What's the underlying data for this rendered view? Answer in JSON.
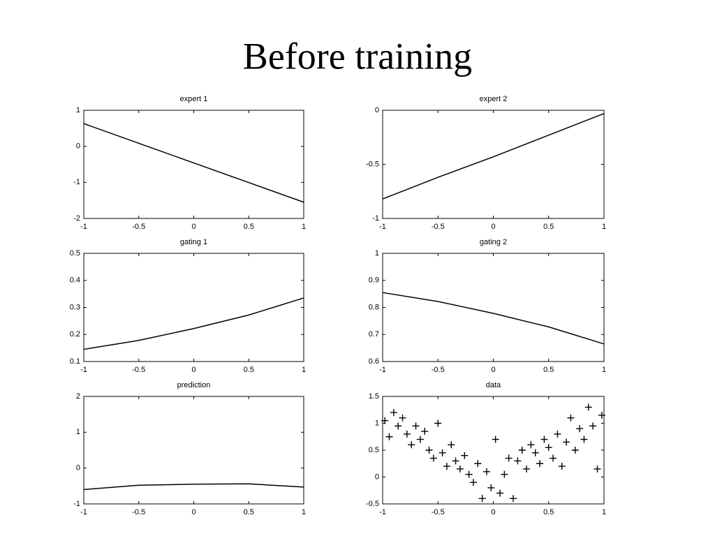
{
  "title": "Before training",
  "chart_data": [
    {
      "type": "line",
      "title": "expert 1",
      "x": [
        -1,
        -0.5,
        0,
        0.5,
        1
      ],
      "values": [
        0.63,
        0.085,
        -0.46,
        -1.005,
        -1.55
      ],
      "color": "#000000",
      "xlim": [
        -1,
        1
      ],
      "xticks": [
        -1,
        -0.5,
        0,
        0.5,
        1
      ],
      "ylim": [
        -2,
        1
      ],
      "yticks": [
        -2,
        -1,
        0,
        1
      ]
    },
    {
      "type": "line",
      "title": "expert 2",
      "x": [
        -1,
        -0.5,
        0,
        0.5,
        1
      ],
      "values": [
        -0.82,
        -0.62,
        -0.43,
        -0.23,
        -0.03
      ],
      "color": "#000000",
      "xlim": [
        -1,
        1
      ],
      "xticks": [
        -1,
        -0.5,
        0,
        0.5,
        1
      ],
      "ylim": [
        -1,
        0
      ],
      "yticks": [
        -1,
        -0.5,
        0
      ]
    },
    {
      "type": "line",
      "title": "gating 1",
      "x": [
        -1,
        -0.5,
        0,
        0.5,
        1
      ],
      "values": [
        0.145,
        0.178,
        0.222,
        0.272,
        0.335
      ],
      "color": "#000000",
      "xlim": [
        -1,
        1
      ],
      "xticks": [
        -1,
        -0.5,
        0,
        0.5,
        1
      ],
      "ylim": [
        0.1,
        0.5
      ],
      "yticks": [
        0.1,
        0.2,
        0.3,
        0.4,
        0.5
      ]
    },
    {
      "type": "line",
      "title": "gating 2",
      "x": [
        -1,
        -0.5,
        0,
        0.5,
        1
      ],
      "values": [
        0.855,
        0.822,
        0.778,
        0.728,
        0.665
      ],
      "color": "#000000",
      "xlim": [
        -1,
        1
      ],
      "xticks": [
        -1,
        -0.5,
        0,
        0.5,
        1
      ],
      "ylim": [
        0.6,
        1
      ],
      "yticks": [
        0.6,
        0.7,
        0.8,
        0.9,
        1
      ]
    },
    {
      "type": "line",
      "title": "prediction",
      "x": [
        -1,
        -0.5,
        0,
        0.5,
        1
      ],
      "values": [
        -0.6,
        -0.48,
        -0.45,
        -0.44,
        -0.53
      ],
      "color": "#000000",
      "xlim": [
        -1,
        1
      ],
      "xticks": [
        -1,
        -0.5,
        0,
        0.5,
        1
      ],
      "ylim": [
        -1,
        2
      ],
      "yticks": [
        -1,
        0,
        1,
        2
      ]
    },
    {
      "type": "scatter",
      "title": "data",
      "color": "#000000",
      "x": [
        -0.98,
        -0.94,
        -0.9,
        -0.86,
        -0.82,
        -0.78,
        -0.74,
        -0.7,
        -0.66,
        -0.62,
        -0.58,
        -0.54,
        -0.5,
        -0.46,
        -0.42,
        -0.38,
        -0.34,
        -0.3,
        -0.26,
        -0.22,
        -0.18,
        -0.14,
        -0.1,
        -0.06,
        -0.02,
        0.02,
        0.06,
        0.1,
        0.14,
        0.18,
        0.22,
        0.26,
        0.3,
        0.34,
        0.38,
        0.42,
        0.46,
        0.5,
        0.54,
        0.58,
        0.62,
        0.66,
        0.7,
        0.74,
        0.78,
        0.82,
        0.86,
        0.9,
        0.94,
        0.98
      ],
      "values": [
        1.05,
        0.75,
        1.2,
        0.95,
        1.1,
        0.8,
        0.6,
        0.95,
        0.7,
        0.85,
        0.5,
        0.35,
        1.0,
        0.45,
        0.2,
        0.6,
        0.3,
        0.15,
        0.4,
        0.05,
        -0.1,
        0.25,
        -0.4,
        0.1,
        -0.2,
        0.7,
        -0.3,
        0.05,
        0.35,
        -0.4,
        0.3,
        0.5,
        0.15,
        0.6,
        0.45,
        0.25,
        0.7,
        0.55,
        0.35,
        0.8,
        0.2,
        0.65,
        1.1,
        0.5,
        0.9,
        0.7,
        1.3,
        0.95,
        0.15,
        1.15
      ],
      "xlim": [
        -1,
        1
      ],
      "xticks": [
        -1,
        -0.5,
        0,
        0.5,
        1
      ],
      "ylim": [
        -0.5,
        1.5
      ],
      "yticks": [
        -0.5,
        0,
        0.5,
        1,
        1.5
      ]
    }
  ]
}
